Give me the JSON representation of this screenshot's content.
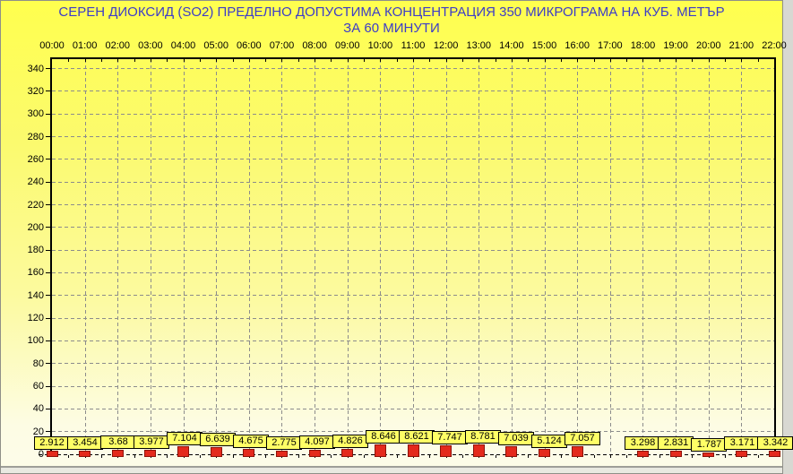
{
  "window": {
    "kind": "air-quality-monitoring-chart"
  },
  "chart_data": {
    "type": "bar",
    "title_line1": "СЕРЕН ДИОКСИД  (SO2)  ПРЕДЕЛНО ДОПУСТИМА КОНЦЕНТРАЦИЯ 350 МИКРОГРАМА  НА КУБ. МЕТЪР",
    "title_line2": "ЗА 60 МИНУТИ",
    "title_color": "#3c3cc8",
    "categories": [
      "00:00",
      "01:00",
      "02:00",
      "03:00",
      "04:00",
      "05:00",
      "06:00",
      "07:00",
      "08:00",
      "09:00",
      "10:00",
      "11:00",
      "12:00",
      "13:00",
      "14:00",
      "15:00",
      "16:00",
      "17:00",
      "18:00",
      "19:00",
      "20:00",
      "21:00",
      "22:00"
    ],
    "values": [
      2.912,
      3.454,
      3.68,
      3.977,
      7.104,
      6.639,
      4.675,
      2.775,
      4.097,
      4.826,
      8.646,
      8.621,
      7.747,
      8.781,
      7.039,
      5.124,
      7.057,
      null,
      3.298,
      2.831,
      1.787,
      3.171,
      3.342
    ],
    "value_labels": [
      "2.912",
      "3.454",
      "3.68",
      "3.977",
      "7.104",
      "6.639",
      "4.675",
      "2.775",
      "4.097",
      "4.826",
      "8.646",
      "8.621",
      "7.747",
      "8.781",
      "7.039",
      "5.124",
      "7.057",
      null,
      "3.298",
      "2.831",
      "1.787",
      "3.171",
      "3.342"
    ],
    "ylim": [
      0,
      350
    ],
    "ytick_step": 20,
    "ytick_labels": [
      "0",
      "20",
      "40",
      "60",
      "80",
      "100",
      "120",
      "140",
      "160",
      "180",
      "200",
      "220",
      "240",
      "260",
      "280",
      "300",
      "320",
      "340"
    ],
    "grid": "on",
    "legend": "none",
    "xaxis_position": "top",
    "bar_color": "#e42a1c",
    "label_box_color": "#ffff66",
    "plot_background": "yellow-gradient",
    "grid_color": "#8c8c8c"
  }
}
